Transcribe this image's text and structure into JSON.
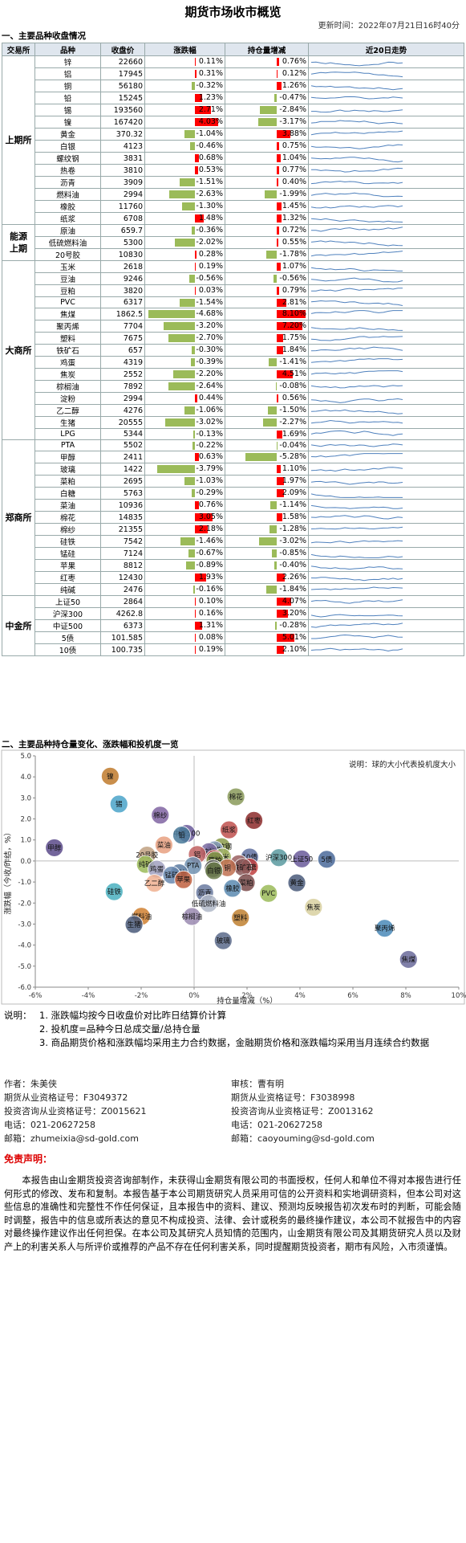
{
  "title": "期货市场收市概览",
  "update_time": "更新时间：2022年07月21日16时40分",
  "section1": "一、主要品种收盘情况",
  "section2": "二、主要品种持仓量变化、涨跌幅和投机度一览",
  "headers": [
    "交易所",
    "品种",
    "收盘价",
    "涨跌幅",
    "持仓量增减",
    "近20日走势"
  ],
  "colors": {
    "up": "#ff0000",
    "down": "#9bbb59",
    "spark": "#4f81bd",
    "header": "#dfe6ee"
  },
  "exchanges": [
    {
      "name": "上期所",
      "rows": [
        {
          "name": "锌",
          "close": "22660",
          "chg": 0.11,
          "chg_text": "0.11%",
          "oi": 0.76,
          "oi_text": "0.76%"
        },
        {
          "name": "铝",
          "close": "17945",
          "chg": 0.31,
          "chg_text": "0.31%",
          "oi": 0.12,
          "oi_text": "0.12%"
        },
        {
          "name": "铜",
          "close": "56180",
          "chg": -0.32,
          "chg_text": "-0.32%",
          "oi": 1.26,
          "oi_text": "1.26%"
        },
        {
          "name": "铅",
          "close": "15245",
          "chg": 1.23,
          "chg_text": "1.23%",
          "oi": -0.47,
          "oi_text": "-0.47%"
        },
        {
          "name": "锡",
          "close": "193560",
          "chg": 2.71,
          "chg_text": "2.71%",
          "oi": -2.84,
          "oi_text": "-2.84%"
        },
        {
          "name": "镍",
          "close": "167420",
          "chg": 4.03,
          "chg_text": "4.03%",
          "oi": -3.17,
          "oi_text": "-3.17%"
        },
        {
          "name": "黄金",
          "close": "370.32",
          "chg": -1.04,
          "chg_text": "-1.04%",
          "oi": 3.88,
          "oi_text": "3.88%"
        },
        {
          "name": "白银",
          "close": "4123",
          "chg": -0.46,
          "chg_text": "-0.46%",
          "oi": 0.75,
          "oi_text": "0.75%"
        },
        {
          "name": "螺纹钢",
          "close": "3831",
          "chg": 0.68,
          "chg_text": "0.68%",
          "oi": 1.04,
          "oi_text": "1.04%"
        },
        {
          "name": "热卷",
          "close": "3810",
          "chg": 0.53,
          "chg_text": "0.53%",
          "oi": 0.77,
          "oi_text": "0.77%"
        },
        {
          "name": "沥青",
          "close": "3909",
          "chg": -1.51,
          "chg_text": "-1.51%",
          "oi": 0.4,
          "oi_text": "0.40%"
        },
        {
          "name": "燃料油",
          "close": "2994",
          "chg": -2.63,
          "chg_text": "-2.63%",
          "oi": -1.99,
          "oi_text": "-1.99%"
        },
        {
          "name": "橡胶",
          "close": "11760",
          "chg": -1.3,
          "chg_text": "-1.30%",
          "oi": 1.45,
          "oi_text": "1.45%"
        },
        {
          "name": "纸浆",
          "close": "6708",
          "chg": 1.48,
          "chg_text": "1.48%",
          "oi": 1.32,
          "oi_text": "1.32%"
        }
      ]
    },
    {
      "name": "能源",
      "name2": "上期",
      "rows": [
        {
          "name": "原油",
          "close": "659.7",
          "chg": -0.36,
          "chg_text": "-0.36%",
          "oi": 0.72,
          "oi_text": "0.72%"
        },
        {
          "name": "低硫燃料油",
          "close": "5300",
          "chg": -2.02,
          "chg_text": "-2.02%",
          "oi": 0.55,
          "oi_text": "0.55%"
        },
        {
          "name": "20号胶",
          "close": "10830",
          "chg": 0.28,
          "chg_text": "0.28%",
          "oi": -1.78,
          "oi_text": "-1.78%"
        }
      ]
    },
    {
      "name": "大商所",
      "rows": [
        {
          "name": "玉米",
          "close": "2618",
          "chg": 0.19,
          "chg_text": "0.19%",
          "oi": 1.07,
          "oi_text": "1.07%"
        },
        {
          "name": "豆油",
          "close": "9246",
          "chg": -0.56,
          "chg_text": "-0.56%",
          "oi": -0.56,
          "oi_text": "-0.56%"
        },
        {
          "name": "豆粕",
          "close": "3820",
          "chg": 0.03,
          "chg_text": "0.03%",
          "oi": 0.79,
          "oi_text": "0.79%"
        },
        {
          "name": "PVC",
          "close": "6317",
          "chg": -1.54,
          "chg_text": "-1.54%",
          "oi": 2.81,
          "oi_text": "2.81%"
        },
        {
          "name": "焦煤",
          "close": "1862.5",
          "chg": -4.68,
          "chg_text": "-4.68%",
          "oi": 8.1,
          "oi_text": "8.10%"
        },
        {
          "name": "聚丙烯",
          "close": "7704",
          "chg": -3.2,
          "chg_text": "-3.20%",
          "oi": 7.2,
          "oi_text": "7.20%"
        },
        {
          "name": "塑料",
          "close": "7675",
          "chg": -2.7,
          "chg_text": "-2.70%",
          "oi": 1.75,
          "oi_text": "1.75%"
        },
        {
          "name": "铁矿石",
          "close": "657",
          "chg": -0.3,
          "chg_text": "-0.30%",
          "oi": 1.84,
          "oi_text": "1.84%"
        },
        {
          "name": "鸡蛋",
          "close": "4319",
          "chg": -0.39,
          "chg_text": "-0.39%",
          "oi": -1.41,
          "oi_text": "-1.41%"
        },
        {
          "name": "焦炭",
          "close": "2552",
          "chg": -2.2,
          "chg_text": "-2.20%",
          "oi": 4.51,
          "oi_text": "4.51%"
        },
        {
          "name": "棕榈油",
          "close": "7892",
          "chg": -2.64,
          "chg_text": "-2.64%",
          "oi": -0.08,
          "oi_text": "-0.08%"
        },
        {
          "name": "淀粉",
          "close": "2994",
          "chg": 0.44,
          "chg_text": "0.44%",
          "oi": 0.56,
          "oi_text": "0.56%"
        },
        {
          "name": "乙二醇",
          "close": "4276",
          "chg": -1.06,
          "chg_text": "-1.06%",
          "oi": -1.5,
          "oi_text": "-1.50%"
        },
        {
          "name": "生猪",
          "close": "20555",
          "chg": -3.02,
          "chg_text": "-3.02%",
          "oi": -2.27,
          "oi_text": "-2.27%"
        },
        {
          "name": "LPG",
          "close": "5344",
          "chg": -0.13,
          "chg_text": "-0.13%",
          "oi": 1.69,
          "oi_text": "1.69%"
        }
      ]
    },
    {
      "name": "郑商所",
      "rows": [
        {
          "name": "PTA",
          "close": "5502",
          "chg": -0.22,
          "chg_text": "-0.22%",
          "oi": -0.04,
          "oi_text": "-0.04%"
        },
        {
          "name": "甲醇",
          "close": "2411",
          "chg": 0.63,
          "chg_text": "0.63%",
          "oi": -5.28,
          "oi_text": "-5.28%"
        },
        {
          "name": "玻璃",
          "close": "1422",
          "chg": -3.79,
          "chg_text": "-3.79%",
          "oi": 1.1,
          "oi_text": "1.10%"
        },
        {
          "name": "菜粕",
          "close": "2695",
          "chg": -1.03,
          "chg_text": "-1.03%",
          "oi": 1.97,
          "oi_text": "1.97%"
        },
        {
          "name": "白糖",
          "close": "5763",
          "chg": -0.29,
          "chg_text": "-0.29%",
          "oi": 2.09,
          "oi_text": "2.09%"
        },
        {
          "name": "菜油",
          "close": "10936",
          "chg": 0.76,
          "chg_text": "0.76%",
          "oi": -1.14,
          "oi_text": "-1.14%"
        },
        {
          "name": "棉花",
          "close": "14835",
          "chg": 3.05,
          "chg_text": "3.05%",
          "oi": 1.58,
          "oi_text": "1.58%"
        },
        {
          "name": "棉纱",
          "close": "21355",
          "chg": 2.18,
          "chg_text": "2.18%",
          "oi": -1.28,
          "oi_text": "-1.28%"
        },
        {
          "name": "硅铁",
          "close": "7542",
          "chg": -1.46,
          "chg_text": "-1.46%",
          "oi": -3.02,
          "oi_text": "-3.02%"
        },
        {
          "name": "锰硅",
          "close": "7124",
          "chg": -0.67,
          "chg_text": "-0.67%",
          "oi": -0.85,
          "oi_text": "-0.85%"
        },
        {
          "name": "苹果",
          "close": "8812",
          "chg": -0.89,
          "chg_text": "-0.89%",
          "oi": -0.4,
          "oi_text": "-0.40%"
        },
        {
          "name": "红枣",
          "close": "12430",
          "chg": 1.93,
          "chg_text": "1.93%",
          "oi": 2.26,
          "oi_text": "2.26%"
        },
        {
          "name": "纯碱",
          "close": "2476",
          "chg": -0.16,
          "chg_text": "-0.16%",
          "oi": -1.84,
          "oi_text": "-1.84%"
        }
      ]
    },
    {
      "name": "中金所",
      "rows": [
        {
          "name": "上证50",
          "close": "2864",
          "chg": 0.1,
          "chg_text": "0.10%",
          "oi": 4.07,
          "oi_text": "4.07%"
        },
        {
          "name": "沪深300",
          "close": "4262.8",
          "chg": 0.16,
          "chg_text": "0.16%",
          "oi": 3.2,
          "oi_text": "3.20%"
        },
        {
          "name": "中证500",
          "close": "6373",
          "chg": 1.31,
          "chg_text": "1.31%",
          "oi": -0.28,
          "oi_text": "-0.28%"
        },
        {
          "name": "5债",
          "close": "101.585",
          "chg": 0.08,
          "chg_text": "0.08%",
          "oi": 5.01,
          "oi_text": "5.01%"
        },
        {
          "name": "10债",
          "close": "100.735",
          "chg": 0.19,
          "chg_text": "0.19%",
          "oi": 2.1,
          "oi_text": "2.10%"
        }
      ]
    }
  ],
  "chart_data": {
    "type": "scatter",
    "subtype": "bubble",
    "xlabel": "持仓量增减（%）",
    "ylabel": "涨跌幅（今收/昨结，%）",
    "annotation": "说明：球的大小代表投机度大小",
    "xlim": [
      -6,
      10
    ],
    "ylim": [
      -6,
      5
    ],
    "xticks": [
      "-6%",
      "-4%",
      "-2%",
      "0%",
      "2%",
      "4%",
      "6%",
      "8%",
      "10%"
    ],
    "yticks": [
      "5.0",
      "4.0",
      "3.0",
      "2.0",
      "1.0",
      "0.0",
      "-1.0",
      "-2.0",
      "-3.0",
      "-4.0",
      "-5.0",
      "-6.0"
    ],
    "grid": false,
    "points": [
      {
        "label": "镍",
        "x": -3.17,
        "y": 4.03,
        "color": "#c07a2c"
      },
      {
        "label": "棉花",
        "x": 1.58,
        "y": 3.05,
        "color": "#8a9a5a"
      },
      {
        "label": "锡",
        "x": -2.84,
        "y": 2.71,
        "color": "#4aa3c9"
      },
      {
        "label": "棉纱",
        "x": -1.28,
        "y": 2.18,
        "color": "#8064a2"
      },
      {
        "label": "红枣",
        "x": 2.26,
        "y": 1.93,
        "color": "#8c2a2a"
      },
      {
        "label": "纸浆",
        "x": 1.32,
        "y": 1.48,
        "color": "#c0504d"
      },
      {
        "label": "中证500",
        "x": -0.28,
        "y": 1.31,
        "color": "#6a5a9a"
      },
      {
        "label": "铅",
        "x": -0.47,
        "y": 1.23,
        "color": "#4a7a9a"
      },
      {
        "label": "菜油",
        "x": -1.14,
        "y": 0.76,
        "color": "#e8a080"
      },
      {
        "label": "螺纹钢",
        "x": 1.04,
        "y": 0.68,
        "color": "#8a9a4a"
      },
      {
        "label": "甲醇",
        "x": -5.28,
        "y": 0.63,
        "color": "#5a4a8a"
      },
      {
        "label": "热卷",
        "x": 0.77,
        "y": 0.53,
        "color": "#8aa0c0"
      },
      {
        "label": "淀粉",
        "x": 0.56,
        "y": 0.44,
        "color": "#7a6aa0"
      },
      {
        "label": "铝",
        "x": 0.12,
        "y": 0.31,
        "color": "#c06060"
      },
      {
        "label": "20号胶",
        "x": -1.78,
        "y": 0.28,
        "color": "#c0a080"
      },
      {
        "label": "玉米",
        "x": 1.07,
        "y": 0.19,
        "color": "#a0b060"
      },
      {
        "label": "沪深300",
        "x": 3.2,
        "y": 0.16,
        "color": "#5a9aa0"
      },
      {
        "label": "10债",
        "x": 2.1,
        "y": 0.19,
        "color": "#6070a0"
      },
      {
        "label": "锌",
        "x": 0.76,
        "y": 0.11,
        "color": "#c0504d"
      },
      {
        "label": "上证50",
        "x": 4.07,
        "y": 0.1,
        "color": "#6a5a9a"
      },
      {
        "label": "5债",
        "x": 5.01,
        "y": 0.08,
        "color": "#4a6a9a"
      },
      {
        "label": "豆粕",
        "x": 0.79,
        "y": 0.03,
        "color": "#7a9a4a"
      },
      {
        "label": "LPG",
        "x": 1.69,
        "y": -0.13,
        "color": "#9a6060"
      },
      {
        "label": "纯碱",
        "x": -1.84,
        "y": -0.16,
        "color": "#9bbb59"
      },
      {
        "label": "PTA",
        "x": -0.04,
        "y": -0.22,
        "color": "#7090b0"
      },
      {
        "label": "白糖",
        "x": 2.09,
        "y": -0.29,
        "color": "#c04040"
      },
      {
        "label": "铁矿石",
        "x": 1.84,
        "y": -0.3,
        "color": "#8a5a5a"
      },
      {
        "label": "铜",
        "x": 1.26,
        "y": -0.32,
        "color": "#c07050"
      },
      {
        "label": "原油",
        "x": 0.72,
        "y": -0.36,
        "color": "#5a5a5a"
      },
      {
        "label": "鸡蛋",
        "x": -1.41,
        "y": -0.39,
        "color": "#a0a0c0"
      },
      {
        "label": "白银",
        "x": 0.75,
        "y": -0.46,
        "color": "#6a7a4a"
      },
      {
        "label": "豆油",
        "x": -0.56,
        "y": -0.56,
        "color": "#5a7aa0"
      },
      {
        "label": "锰硅",
        "x": -0.85,
        "y": -0.67,
        "color": "#6a8ab0"
      },
      {
        "label": "苹果",
        "x": -0.4,
        "y": -0.89,
        "color": "#c06040"
      },
      {
        "label": "菜粕",
        "x": 1.97,
        "y": -1.03,
        "color": "#7a4a4a"
      },
      {
        "label": "黄金",
        "x": 3.88,
        "y": -1.04,
        "color": "#4a5a7a"
      },
      {
        "label": "乙二醇",
        "x": -1.5,
        "y": -1.06,
        "color": "#f0b090"
      },
      {
        "label": "橡胶",
        "x": 1.45,
        "y": -1.3,
        "color": "#5a8ab0"
      },
      {
        "label": "硅铁",
        "x": -3.02,
        "y": -1.46,
        "color": "#4ab0c0"
      },
      {
        "label": "沥青",
        "x": 0.4,
        "y": -1.51,
        "color": "#6a7aa0"
      },
      {
        "label": "PVC",
        "x": 2.81,
        "y": -1.54,
        "color": "#9bbb59"
      },
      {
        "label": "低硫燃料油",
        "x": 0.55,
        "y": -2.02,
        "color": "#b0b8c8"
      },
      {
        "label": "焦炭",
        "x": 4.51,
        "y": -2.2,
        "color": "#d8d0a0"
      },
      {
        "label": "燃料油",
        "x": -1.99,
        "y": -2.63,
        "color": "#d08030"
      },
      {
        "label": "棕榈油",
        "x": -0.08,
        "y": -2.64,
        "color": "#9a8ab0"
      },
      {
        "label": "塑料",
        "x": 1.75,
        "y": -2.7,
        "color": "#c08030"
      },
      {
        "label": "生猪",
        "x": -2.27,
        "y": -3.02,
        "color": "#4a5a7a"
      },
      {
        "label": "聚丙烯",
        "x": 7.2,
        "y": -3.2,
        "color": "#4a8ab8"
      },
      {
        "label": "玻璃",
        "x": 1.1,
        "y": -3.79,
        "color": "#5a6a8a"
      },
      {
        "label": "焦煤",
        "x": 8.1,
        "y": -4.68,
        "color": "#6a6a9a"
      }
    ]
  },
  "notes": {
    "label": "说明：",
    "items": [
      "1. 涨跌幅均按今日收盘价对比昨日结算价计算",
      "2. 投机度=品种今日总成交量/总持仓量",
      "3. 商品期货价格和涨跌幅均采用主力合约数据，金融期货价格和涨跌幅均采用当月连续合约数据"
    ]
  },
  "author": {
    "name": "作者：朱美侠",
    "cert1": "期货从业资格证号：F3049372",
    "cert2": "投资咨询从业资格证号：Z0015621",
    "phone": "电话：021-20627258",
    "email": "邮箱：zhumeixia@sd-gold.com"
  },
  "reviewer": {
    "name": "审核：曹有明",
    "cert1": "期货从业资格证号：F3038998",
    "cert2": "投资咨询从业资格证号：Z0013162",
    "phone": "电话：021-20627258",
    "email": "邮箱：caoyouming@sd-gold.com"
  },
  "disclaimer": {
    "title": "免责声明：",
    "text": "本报告由山金期货投资咨询部制作，未获得山金期货有限公司的书面授权，任何人和单位不得对本报告进行任何形式的修改、发布和复制。本报告基于本公司期货研究人员采用可信的公开资料和实地调研资料，但本公司对这些信息的准确性和完整性不作任何保证，且本报告中的资料、建议、预测均反映报告初次发布时的判断，可能会随时调整，报告中的信息或所表达的意见不构成投资、法律、会计或税务的最终操作建议，本公司不就报告中的内容对最终操作建议作出任何担保。在本公司及其研究人员知情的范围内，山金期货有限公司及其期货研究人员以及财产上的利害关系人与所评价或推荐的产品不存在任何利害关系，同时提醒期货投资者，期市有风险，入市须谨慎。"
  }
}
